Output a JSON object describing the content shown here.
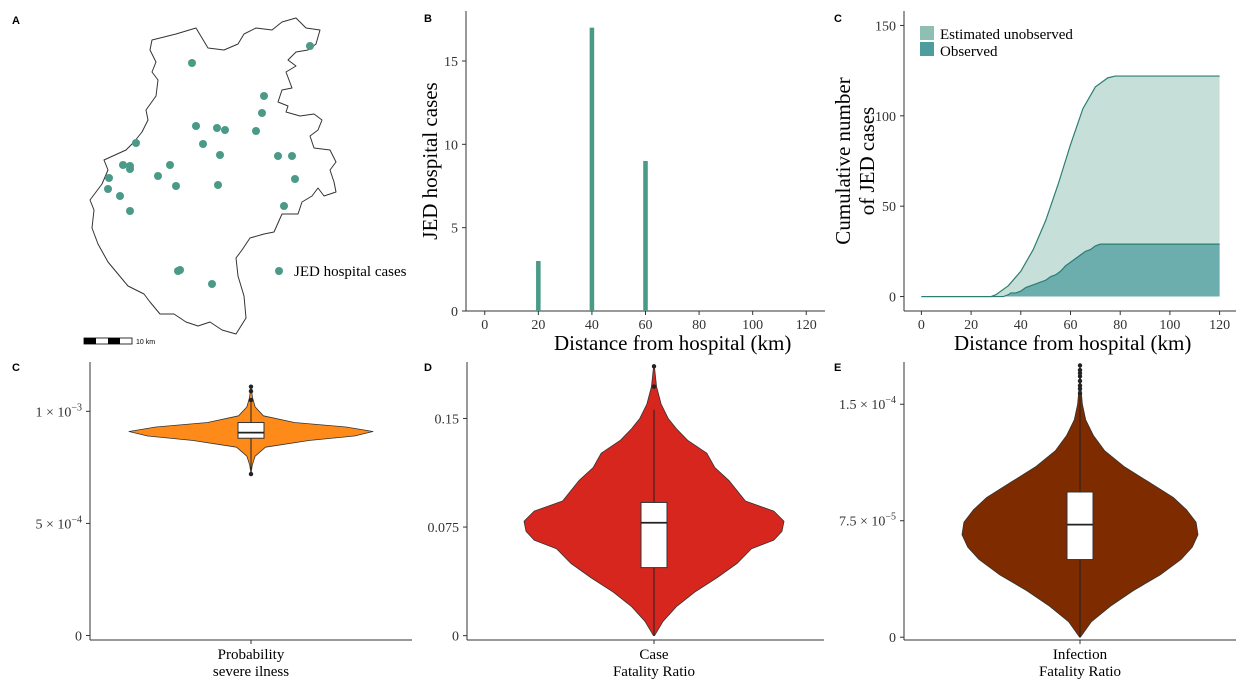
{
  "colors": {
    "teal": "#4a9a87",
    "observed": "#4d9c9e",
    "unobserved": "#8fbfb3",
    "orange": "#fe8b19",
    "red": "#d7261d",
    "brown": "#7e2b00"
  },
  "panel_a": {
    "label": "A",
    "legend": "JED hospital cases",
    "scale_label": "10 km"
  },
  "chart_data": [
    {
      "panel": "B",
      "type": "bar",
      "ylabel": "JED hospital cases",
      "xlabel": "Distance from hospital (km)",
      "x": [
        20,
        40,
        60
      ],
      "values": [
        3,
        17,
        9
      ],
      "xlim": [
        -7,
        127
      ],
      "ylim": [
        0,
        18
      ],
      "xticks": [
        0,
        20,
        40,
        60,
        80,
        100,
        120
      ],
      "yticks": [
        0,
        5,
        10,
        15
      ],
      "color": "#4a9a87"
    },
    {
      "panel": "C",
      "type": "area",
      "ylabel_lines": [
        "Cumulative number",
        "of JED cases"
      ],
      "xlabel": "Distance from hospital (km)",
      "xlim": [
        -7,
        127
      ],
      "ylim": [
        -8,
        158
      ],
      "xticks": [
        0,
        20,
        40,
        60,
        80,
        100,
        120
      ],
      "yticks": [
        0,
        50,
        100,
        150
      ],
      "legend": [
        "Estimated unobserved",
        "Observed"
      ],
      "series": [
        {
          "name": "Estimated unobserved",
          "x": [
            0,
            28,
            30,
            35,
            40,
            45,
            50,
            55,
            60,
            65,
            70,
            75,
            78,
            80,
            100,
            120
          ],
          "values": [
            0,
            0,
            1,
            6,
            14,
            26,
            42,
            62,
            84,
            104,
            116,
            121,
            122,
            122,
            122,
            122
          ]
        },
        {
          "name": "Observed",
          "x": [
            0,
            33,
            35,
            36,
            38,
            40,
            42,
            44,
            46,
            48,
            50,
            52,
            54,
            56,
            58,
            60,
            62,
            64,
            66,
            68,
            70,
            72,
            120
          ],
          "values": [
            0,
            0,
            1,
            2,
            2,
            3,
            5,
            6,
            7,
            8,
            9,
            11,
            12,
            14,
            17,
            19,
            21,
            23,
            25,
            26,
            28,
            29,
            29
          ]
        }
      ]
    },
    {
      "panel": "C",
      "type": "violin",
      "xlabel_lines": [
        "Probability",
        "severe ilness"
      ],
      "ylim": [
        -2e-05,
        0.00122
      ],
      "yticks": [
        {
          "v": 0,
          "base": "0",
          "exp": ""
        },
        {
          "v": 0.0005,
          "base": "5 × 10",
          "exp": "−4"
        },
        {
          "v": 0.001,
          "base": "1 × 10",
          "exp": "−3"
        }
      ],
      "color": "#fe8b19",
      "whisker": [
        0.00074,
        0.00104
      ],
      "box": [
        0.00088,
        0.00095
      ],
      "median": 0.000905,
      "outliers": [
        0.00072,
        0.00105,
        0.00109,
        0.00111
      ],
      "density": [
        [
          0.000725,
          0.2
        ],
        [
          0.00076,
          1.2
        ],
        [
          0.0008,
          4
        ],
        [
          0.00084,
          14
        ],
        [
          0.00087,
          56
        ],
        [
          0.00089,
          100
        ],
        [
          0.00091,
          118
        ],
        [
          0.00093,
          92
        ],
        [
          0.00095,
          42
        ],
        [
          0.00098,
          12
        ],
        [
          0.00102,
          4
        ],
        [
          0.00106,
          1.5
        ],
        [
          0.0011,
          0.3
        ]
      ]
    },
    {
      "panel": "D",
      "type": "violin",
      "xlabel_lines": [
        "Case",
        "Fatality Ratio"
      ],
      "ylim": [
        -0.003,
        0.189
      ],
      "yticks": [
        {
          "v": 0,
          "base": "0",
          "exp": ""
        },
        {
          "v": 0.075,
          "base": "0.075",
          "exp": ""
        },
        {
          "v": 0.15,
          "base": "0.15",
          "exp": ""
        }
      ],
      "color": "#d7261d",
      "whisker": [
        0.0,
        0.156
      ],
      "box": [
        0.047,
        0.092
      ],
      "median": 0.078,
      "outliers": [
        0.172,
        0.186
      ],
      "density": [
        [
          0.0,
          0.5
        ],
        [
          0.01,
          9
        ],
        [
          0.02,
          22
        ],
        [
          0.03,
          40
        ],
        [
          0.04,
          62
        ],
        [
          0.05,
          82
        ],
        [
          0.06,
          96
        ],
        [
          0.066,
          118
        ],
        [
          0.072,
          126
        ],
        [
          0.079,
          128
        ],
        [
          0.086,
          118
        ],
        [
          0.093,
          90
        ],
        [
          0.1,
          82
        ],
        [
          0.107,
          74
        ],
        [
          0.116,
          60
        ],
        [
          0.126,
          52
        ],
        [
          0.135,
          33
        ],
        [
          0.143,
          22
        ],
        [
          0.15,
          14
        ],
        [
          0.16,
          7
        ],
        [
          0.172,
          2.5
        ],
        [
          0.186,
          0.4
        ]
      ]
    },
    {
      "panel": "E",
      "type": "violin",
      "xlabel_lines": [
        "Infection",
        "Fatality Ratio"
      ],
      "ylim": [
        -1.8e-06,
        0.0001772
      ],
      "yticks": [
        {
          "v": 0,
          "base": "0",
          "exp": ""
        },
        {
          "v": 7.5e-05,
          "base": "7.5 × 10",
          "exp": "−5"
        },
        {
          "v": 0.00015,
          "base": "1.5 × 10",
          "exp": "−4"
        }
      ],
      "color": "#7e2b00",
      "whisker": [
        0.0,
        0.000155
      ],
      "box": [
        5e-05,
        9.35e-05
      ],
      "median": 7.25e-05,
      "outliers": [
        0.000157,
        0.00016,
        0.000162,
        0.000165,
        0.000168,
        0.00017,
        0.000172,
        0.000175
      ],
      "density": [
        [
          0.0,
          0.4
        ],
        [
          1e-05,
          12
        ],
        [
          2e-05,
          32
        ],
        [
          3e-05,
          56
        ],
        [
          4e-05,
          84
        ],
        [
          5e-05,
          106
        ],
        [
          5.8e-05,
          118
        ],
        [
          6.6e-05,
          124
        ],
        [
          7.4e-05,
          122
        ],
        [
          8.2e-05,
          112
        ],
        [
          9e-05,
          98
        ],
        [
          0.0001,
          72
        ],
        [
          0.00011,
          46
        ],
        [
          0.00012,
          26
        ],
        [
          0.00013,
          14
        ],
        [
          0.00014,
          6
        ],
        [
          0.00015,
          2.5
        ],
        [
          0.000162,
          0.8
        ],
        [
          0.000175,
          0.2
        ]
      ]
    }
  ]
}
